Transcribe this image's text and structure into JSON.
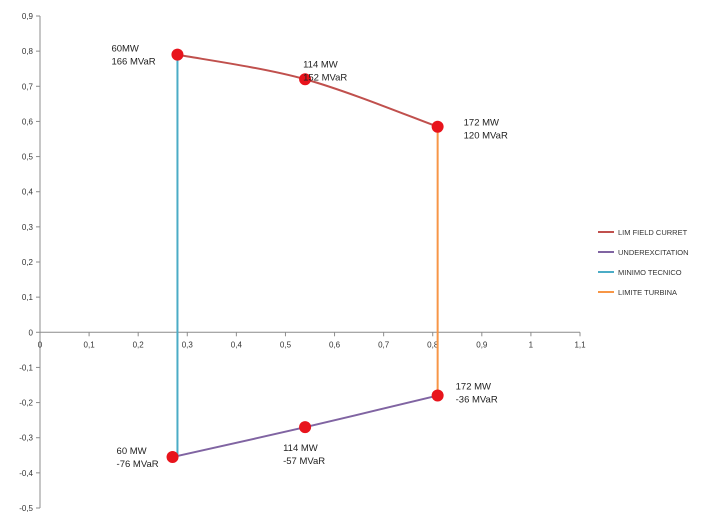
{
  "chart_data": {
    "type": "line",
    "xlim": [
      0,
      1.1
    ],
    "ylim": [
      -0.5,
      0.9
    ],
    "x_ticks": [
      "0",
      "0,1",
      "0,2",
      "0,3",
      "0,4",
      "0,5",
      "0,6",
      "0,7",
      "0,8",
      "0,9",
      "1",
      "1,1"
    ],
    "y_ticks": [
      "-0,5",
      "-0,4",
      "-0,3",
      "-0,2",
      "-0,1",
      "0",
      "0,1",
      "0,2",
      "0,3",
      "0,4",
      "0,5",
      "0,6",
      "0,7",
      "0,8",
      "0,9"
    ],
    "grid": false,
    "legend_position": "right",
    "series": [
      {
        "name": "LIM FIELD CURRET",
        "color": "#c0504d",
        "points": [
          [
            0.28,
            0.79
          ],
          [
            0.54,
            0.72
          ],
          [
            0.81,
            0.585
          ]
        ]
      },
      {
        "name": "UNDEREXCITATION",
        "color": "#8064a2",
        "points": [
          [
            0.27,
            -0.355
          ],
          [
            0.54,
            -0.27
          ],
          [
            0.81,
            -0.18
          ]
        ]
      },
      {
        "name": "MINIMO TECNICO",
        "color": "#4bacc6",
        "points": [
          [
            0.28,
            0.79
          ],
          [
            0.28,
            -0.355
          ]
        ]
      },
      {
        "name": "LIMITE TURBINA",
        "color": "#f79646",
        "points": [
          [
            0.81,
            0.585
          ],
          [
            0.81,
            -0.18
          ]
        ]
      }
    ],
    "markers": {
      "color": "#e8141c",
      "points": [
        [
          0.28,
          0.79
        ],
        [
          0.54,
          0.72
        ],
        [
          0.81,
          0.585
        ],
        [
          0.27,
          -0.355
        ],
        [
          0.54,
          -0.27
        ],
        [
          0.81,
          -0.18
        ]
      ]
    },
    "annotations": [
      {
        "lines": [
          "60MW",
          "166 MVaR"
        ],
        "x": 0.28,
        "y": 0.79
      },
      {
        "lines": [
          "114 MW",
          "152 MVaR"
        ],
        "x": 0.54,
        "y": 0.72
      },
      {
        "lines": [
          "172 MW",
          "120 MVaR"
        ],
        "x": 0.81,
        "y": 0.585
      },
      {
        "lines": [
          "60 MW",
          "-76 MVaR"
        ],
        "x": 0.27,
        "y": -0.355
      },
      {
        "lines": [
          "114 MW",
          "-57 MVaR"
        ],
        "x": 0.54,
        "y": -0.27
      },
      {
        "lines": [
          "172 MW",
          "-36 MVaR"
        ],
        "x": 0.81,
        "y": -0.18
      }
    ]
  }
}
